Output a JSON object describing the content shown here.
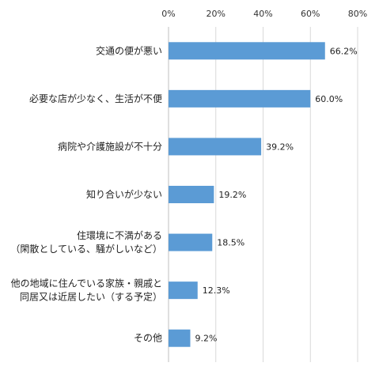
{
  "chart_data": {
    "type": "bar",
    "orientation": "horizontal",
    "title": "",
    "xlabel": "",
    "ylabel": "",
    "xlim": [
      0,
      80
    ],
    "x_ticks": [
      "0%",
      "20%",
      "40%",
      "60%",
      "80%"
    ],
    "axis_position": "top",
    "grid": true,
    "legend": "none",
    "bar_color": "#5b9bd5",
    "categories": [
      [
        "交通の便が悪い"
      ],
      [
        "必要な店が少なく、生活が不便"
      ],
      [
        "病院や介護施設が不十分"
      ],
      [
        "知り合いが少ない"
      ],
      [
        "住環境に不満がある",
        "（閑散としている、騒がしいなど）"
      ],
      [
        "他の地域に住んでいる家族・親戚と",
        "同居又は近居したい（する予定）"
      ],
      [
        "その他"
      ]
    ],
    "values": [
      66.2,
      60.0,
      39.2,
      19.2,
      18.5,
      12.3,
      9.2
    ],
    "value_labels": [
      "66.2%",
      "60.0%",
      "39.2%",
      "19.2%",
      "18.5%",
      "12.3%",
      "9.2%"
    ]
  }
}
